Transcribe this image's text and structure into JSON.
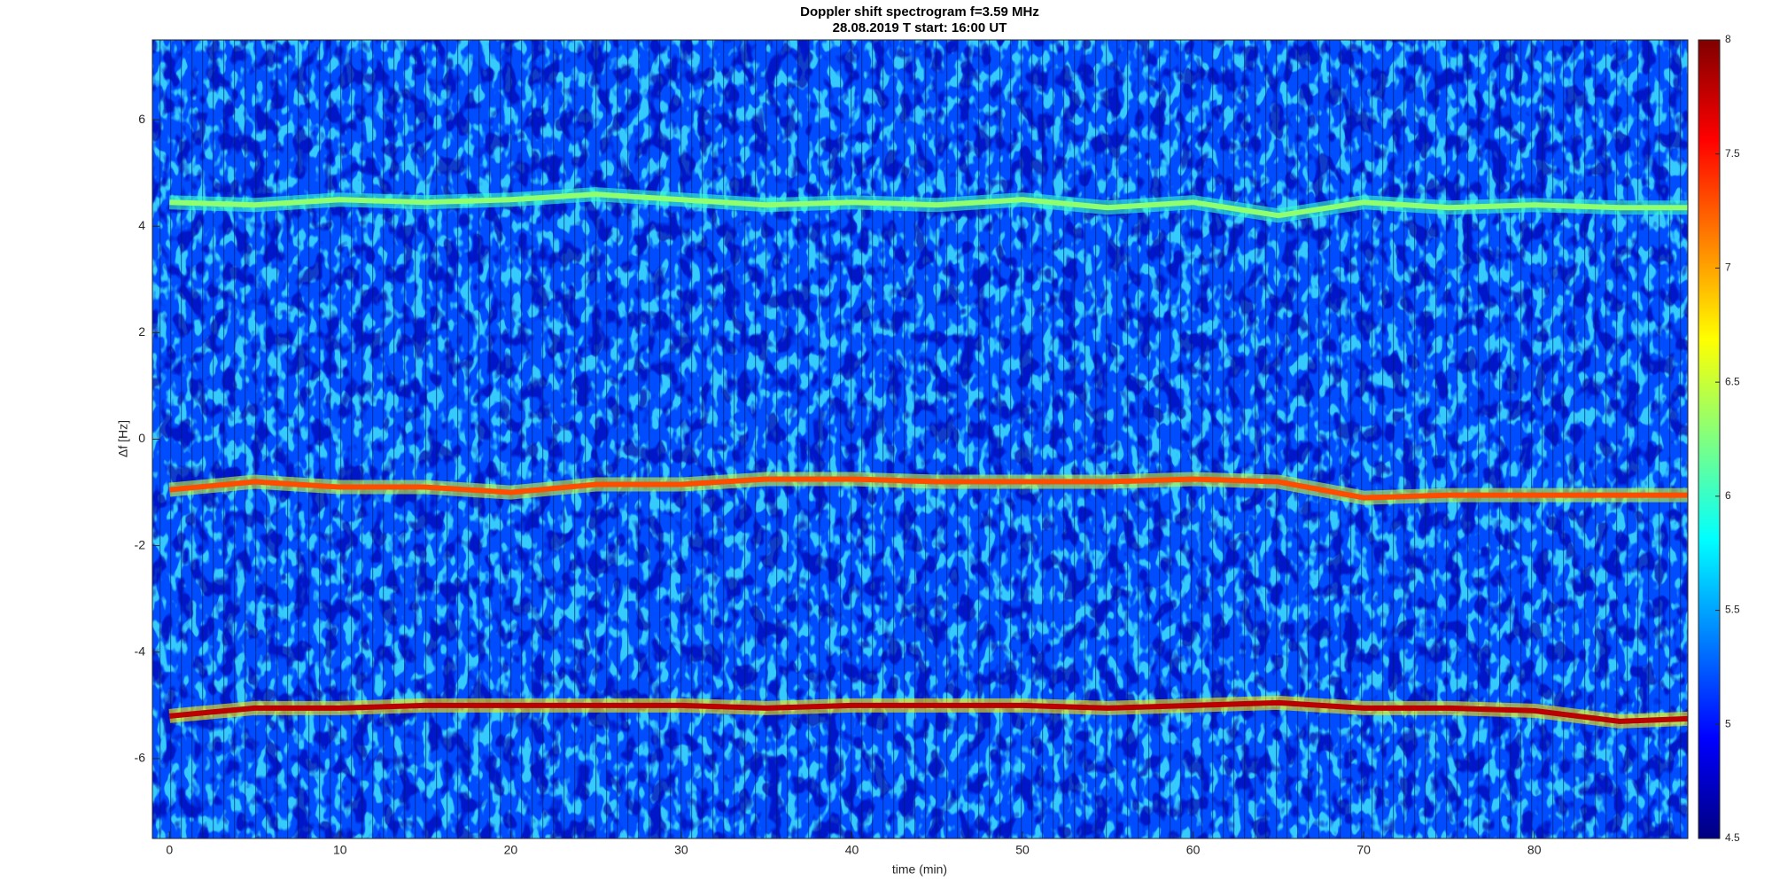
{
  "chart_data": {
    "type": "spectrogram",
    "title": "Doppler shift spectrogram f=3.59 MHz",
    "subtitle": "28.08.2019   T start: 16:00 UT",
    "xlabel": "time (min)",
    "ylabel": "Δf [Hz]",
    "xlim": [
      -1,
      89
    ],
    "xticks": [
      0,
      10,
      20,
      30,
      40,
      50,
      60,
      70,
      80
    ],
    "ylim": [
      -7.5,
      7.5
    ],
    "yticks": [
      -6,
      -4,
      -2,
      0,
      2,
      4,
      6
    ],
    "colormap": "jet",
    "clim": [
      4.5,
      8
    ],
    "cticks": [
      4.5,
      5,
      5.5,
      6,
      6.5,
      7,
      7.5,
      8
    ],
    "background": 5.2,
    "x": [
      0,
      5,
      10,
      15,
      20,
      25,
      30,
      35,
      40,
      45,
      50,
      55,
      60,
      65,
      70,
      75,
      80,
      85,
      89
    ],
    "series": [
      {
        "level": 6.3,
        "values": [
          4.45,
          4.4,
          4.5,
          4.45,
          4.5,
          4.6,
          4.5,
          4.4,
          4.45,
          4.4,
          4.5,
          4.35,
          4.45,
          4.2,
          4.45,
          4.35,
          4.4,
          4.35,
          4.35
        ]
      },
      {
        "level": 7.3,
        "values": [
          -0.95,
          -0.8,
          -0.9,
          -0.9,
          -1.0,
          -0.85,
          -0.85,
          -0.75,
          -0.75,
          -0.8,
          -0.8,
          -0.8,
          -0.75,
          -0.8,
          -1.1,
          -1.05,
          -1.05,
          -1.05,
          -1.05
        ]
      },
      {
        "level": 7.8,
        "values": [
          -5.2,
          -5.05,
          -5.05,
          -5.0,
          -5.0,
          -5.0,
          -5.0,
          -5.05,
          -5.0,
          -5.0,
          -5.0,
          -5.05,
          -5.0,
          -4.95,
          -5.05,
          -5.05,
          -5.1,
          -5.3,
          -5.25
        ]
      }
    ]
  }
}
